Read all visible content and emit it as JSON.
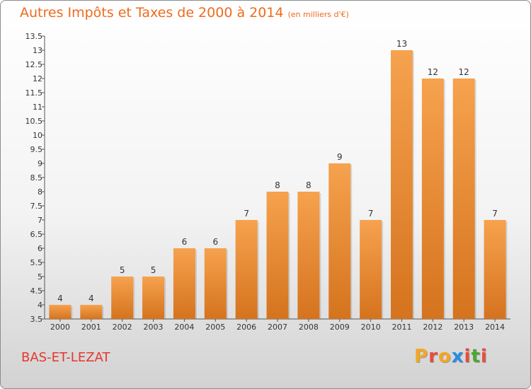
{
  "title": "Autres Impôts et Taxes de 2000 à 2014",
  "unit_note": "(en milliers d'€)",
  "commune": "BAS-ET-LEZAT",
  "logo": {
    "text": "Proxiti",
    "letters": [
      "P",
      "r",
      "o",
      "x",
      "i",
      "t",
      "i"
    ]
  },
  "colors": {
    "title": "#ee6b1e",
    "commune": "#e6362e",
    "bar_light": "#f6a24e",
    "bar_dark": "#d5731e",
    "logo_letters": [
      "#f5a623",
      "#e84c3d",
      "#f5a623",
      "#2a8de0",
      "#e84c3d",
      "#4aa832",
      "#e84c3d"
    ]
  },
  "chart_data": {
    "type": "bar",
    "categories": [
      "2000",
      "2001",
      "2002",
      "2003",
      "2004",
      "2005",
      "2006",
      "2007",
      "2008",
      "2009",
      "2010",
      "2011",
      "2012",
      "2013",
      "2014"
    ],
    "values": [
      4,
      4,
      5,
      5,
      6,
      6,
      7,
      8,
      8,
      9,
      7,
      13,
      12,
      12,
      7
    ],
    "data_labels": [
      "4",
      "4",
      "5",
      "5",
      "6",
      "6",
      "7",
      "8",
      "8",
      "9",
      "7",
      "13",
      "12",
      "12",
      "7"
    ],
    "ylim": [
      3.5,
      13.5
    ],
    "yticks": [
      "3.5",
      "4",
      "4.5",
      "5",
      "5.5",
      "6",
      "6.5",
      "7",
      "7.5",
      "8",
      "8.5",
      "9",
      "9.5",
      "10",
      "10.5",
      "11",
      "11.5",
      "12",
      "12.5",
      "13",
      "13.5"
    ],
    "grid": false,
    "xlabel": "",
    "ylabel": ""
  }
}
